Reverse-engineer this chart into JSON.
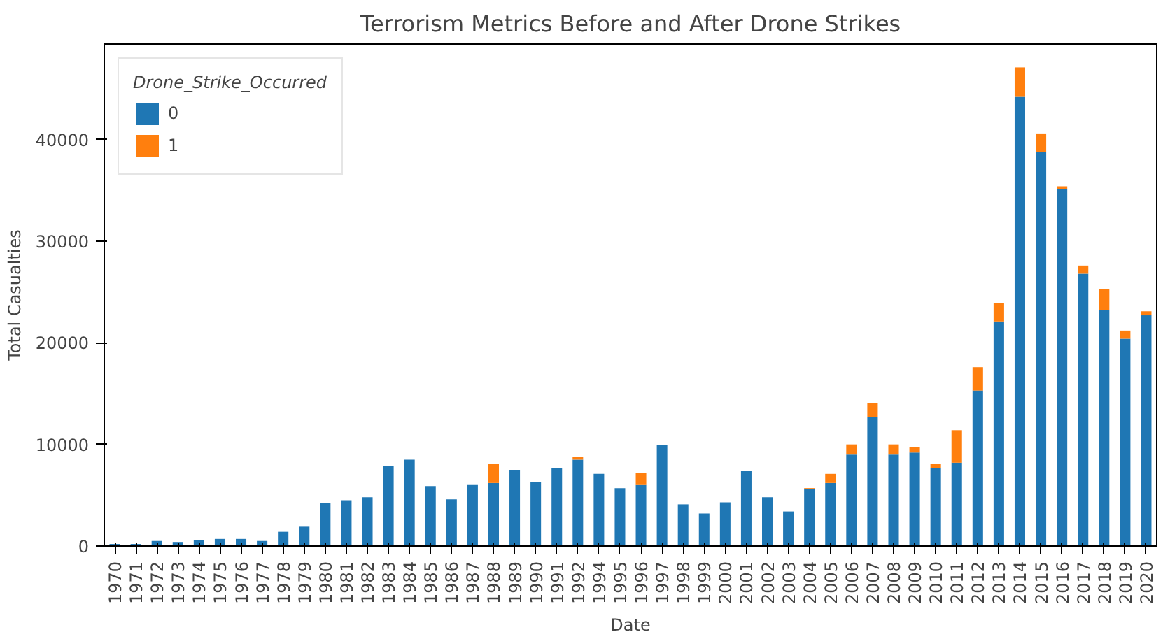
{
  "chart_data": {
    "type": "bar",
    "stacked": true,
    "title": "Terrorism Metrics Before and After Drone Strikes",
    "xlabel": "Date",
    "ylabel": "Total Casualties",
    "legend_title": "Drone_Strike_Occurred",
    "legend": "top left",
    "grid": false,
    "categories": [
      "1970",
      "1971",
      "1972",
      "1973",
      "1974",
      "1975",
      "1976",
      "1977",
      "1978",
      "1979",
      "1980",
      "1981",
      "1982",
      "1983",
      "1984",
      "1985",
      "1986",
      "1987",
      "1988",
      "1989",
      "1990",
      "1991",
      "1992",
      "1994",
      "1995",
      "1996",
      "1997",
      "1998",
      "1999",
      "2000",
      "2001",
      "2002",
      "2003",
      "2004",
      "2005",
      "2006",
      "2007",
      "2008",
      "2009",
      "2010",
      "2011",
      "2012",
      "2013",
      "2014",
      "2015",
      "2016",
      "2017",
      "2018",
      "2019",
      "2020"
    ],
    "series": [
      {
        "name": "0",
        "color": "#1f77b4",
        "values": [
          200,
          200,
          500,
          400,
          600,
          700,
          700,
          500,
          1400,
          1900,
          4200,
          4500,
          4800,
          7900,
          8500,
          5900,
          4600,
          6000,
          6200,
          7500,
          6300,
          7700,
          8500,
          7100,
          5700,
          6000,
          9900,
          4100,
          3200,
          4300,
          7400,
          4800,
          3400,
          5600,
          6200,
          9000,
          12700,
          9000,
          9200,
          7700,
          8200,
          15300,
          22100,
          44200,
          38800,
          35100,
          26800,
          23200,
          20400,
          22700
        ]
      },
      {
        "name": "1",
        "color": "#ff7f0e",
        "values": [
          null,
          null,
          null,
          null,
          null,
          null,
          null,
          null,
          null,
          null,
          null,
          null,
          null,
          null,
          null,
          null,
          null,
          null,
          1900,
          null,
          null,
          null,
          300,
          null,
          null,
          1200,
          null,
          null,
          null,
          null,
          null,
          null,
          null,
          100,
          900,
          1000,
          1400,
          1000,
          500,
          400,
          3200,
          2300,
          1800,
          2900,
          1800,
          300,
          800,
          2100,
          800,
          400
        ]
      }
    ],
    "ylim": [
      0,
      49400
    ],
    "yticks": [
      0,
      10000,
      20000,
      30000,
      40000
    ]
  }
}
